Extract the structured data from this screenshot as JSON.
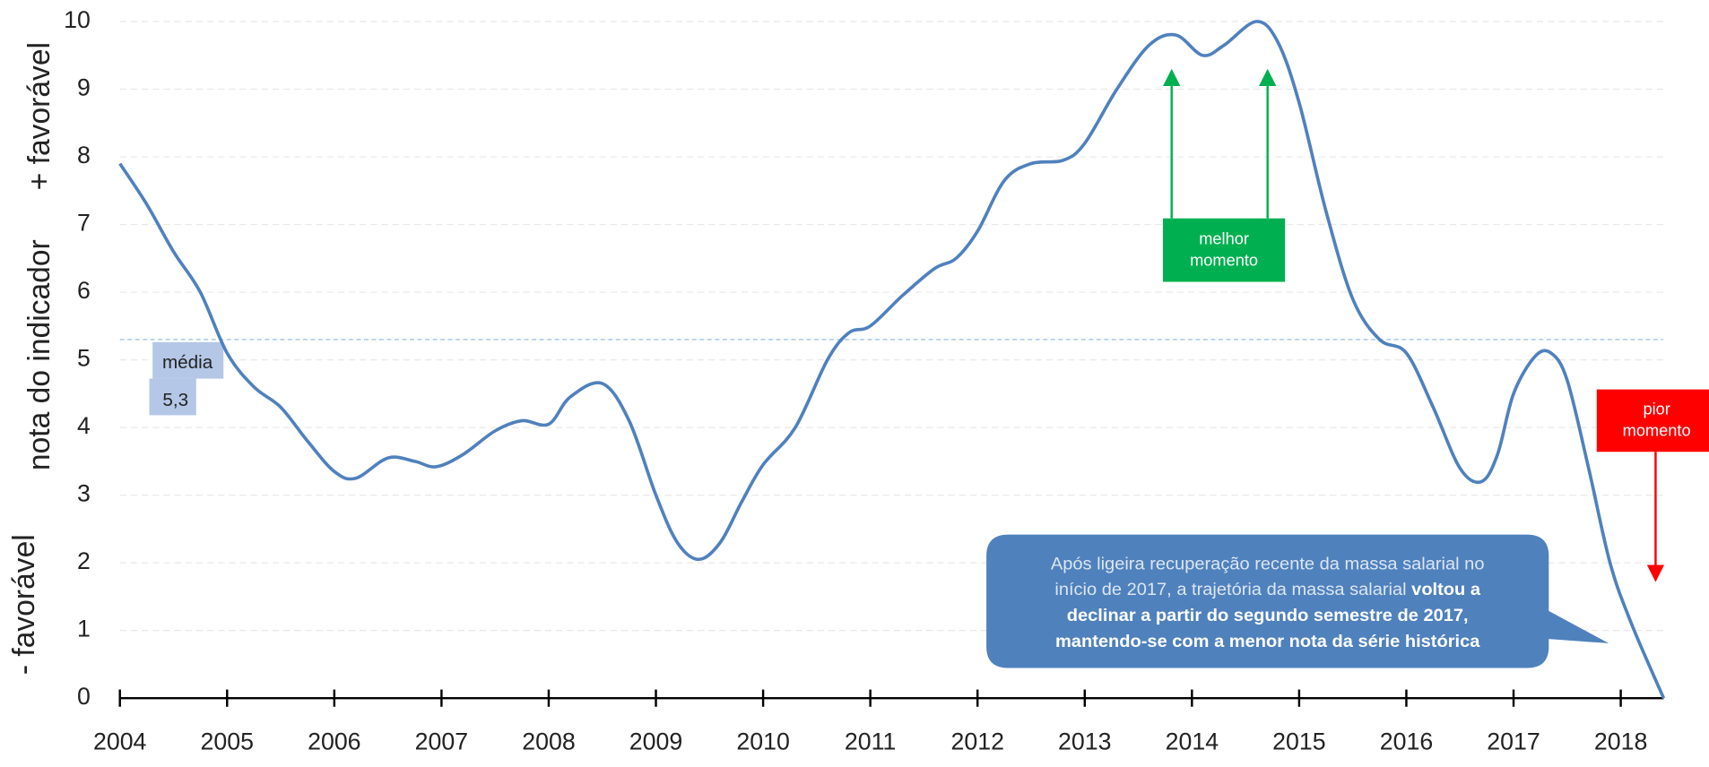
{
  "chart_data": {
    "type": "line",
    "y_label": "nota do indicador",
    "y_label_top": "+ favorável",
    "y_label_bottom": "- favorável",
    "x": [
      2004.0,
      2004.25,
      2004.5,
      2004.75,
      2005.0,
      2005.25,
      2005.5,
      2005.75,
      2006.0,
      2006.2,
      2006.5,
      2006.75,
      2006.95,
      2007.2,
      2007.5,
      2007.75,
      2008.0,
      2008.2,
      2008.5,
      2008.75,
      2009.0,
      2009.2,
      2009.4,
      2009.6,
      2009.8,
      2010.0,
      2010.3,
      2010.6,
      2010.8,
      2011.0,
      2011.3,
      2011.6,
      2011.8,
      2012.0,
      2012.25,
      2012.5,
      2012.8,
      2013.0,
      2013.3,
      2013.6,
      2013.85,
      2014.1,
      2014.3,
      2014.6,
      2014.8,
      2015.0,
      2015.25,
      2015.5,
      2015.75,
      2016.0,
      2016.25,
      2016.5,
      2016.7,
      2016.85,
      2017.0,
      2017.2,
      2017.35,
      2017.5,
      2017.7,
      2017.9,
      2018.1,
      2018.4
    ],
    "series": [
      {
        "color": "#4f81bd",
        "values": [
          7.9,
          7.3,
          6.6,
          6.0,
          5.1,
          4.6,
          4.3,
          3.8,
          3.35,
          3.25,
          3.55,
          3.5,
          3.42,
          3.6,
          3.95,
          4.1,
          4.05,
          4.45,
          4.65,
          4.1,
          3.0,
          2.3,
          2.05,
          2.3,
          2.9,
          3.45,
          4.0,
          5.0,
          5.4,
          5.5,
          5.95,
          6.35,
          6.5,
          6.9,
          7.65,
          7.9,
          7.95,
          8.2,
          9.0,
          9.65,
          9.8,
          9.5,
          9.65,
          10.0,
          9.7,
          8.8,
          7.2,
          5.9,
          5.3,
          5.1,
          4.3,
          3.4,
          3.2,
          3.6,
          4.5,
          5.05,
          5.1,
          4.7,
          3.4,
          2.0,
          1.1,
          0.0
        ]
      }
    ],
    "xlim": [
      2004,
      2018.4
    ],
    "xticks": [
      2004,
      2005,
      2006,
      2007,
      2008,
      2009,
      2010,
      2011,
      2012,
      2013,
      2014,
      2015,
      2016,
      2017,
      2018
    ],
    "ylim": [
      0,
      10
    ],
    "yticks": [
      0,
      1,
      2,
      3,
      4,
      5,
      6,
      7,
      8,
      9,
      10
    ],
    "grid": true,
    "mean": {
      "value": 5.3,
      "label": "5,3"
    },
    "mean_text": "média",
    "best": "melhor momento",
    "worst": "pior momento",
    "callout_plain": [
      "Após ligeira recuperação recente da massa salarial no",
      "início de 2017, a trajetória da massa salarial"
    ],
    "callout_bold": [
      "voltou a",
      "declinar a partir do segundo semestre de 2017,",
      "mantendo-se com a menor nota da série histórica"
    ]
  }
}
